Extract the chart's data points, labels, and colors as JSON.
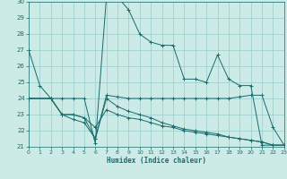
{
  "xlabel": "Humidex (Indice chaleur)",
  "bg_color": "#cceae6",
  "line_color": "#1a6b6b",
  "grid_color": "#99cccc",
  "series": [
    {
      "x": [
        0,
        1,
        2,
        3,
        4,
        5,
        6,
        7,
        8,
        9,
        10,
        11,
        12,
        13,
        14,
        15,
        16,
        17,
        18,
        19,
        20,
        21,
        22,
        23
      ],
      "y": [
        27,
        24.8,
        24,
        24,
        24,
        24,
        21.2,
        30.3,
        30.3,
        29.5,
        28,
        27.5,
        27.3,
        27.3,
        25.2,
        25.2,
        25.0,
        26.7,
        25.2,
        24.8,
        24.8,
        21.1,
        21.1,
        21.1
      ],
      "marker": true
    },
    {
      "x": [
        0,
        2,
        3,
        4,
        5,
        6,
        7,
        8,
        9,
        10,
        11,
        12,
        13,
        14,
        15,
        16,
        17,
        18,
        19,
        20,
        21,
        22,
        23
      ],
      "y": [
        24.0,
        24.0,
        23.0,
        22.7,
        22.5,
        21.5,
        24.2,
        24.1,
        24.0,
        24.0,
        24.0,
        24.0,
        24.0,
        24.0,
        24.0,
        24.0,
        24.0,
        24.0,
        24.1,
        24.2,
        24.2,
        22.2,
        21.1
      ],
      "marker": false
    },
    {
      "x": [
        0,
        2,
        3,
        4,
        5,
        6,
        7,
        8,
        9,
        10,
        11,
        12,
        13,
        14,
        15,
        16,
        17,
        18,
        19,
        20,
        21,
        22,
        23
      ],
      "y": [
        24.0,
        24.0,
        23.0,
        23.0,
        22.8,
        22.2,
        23.3,
        23.0,
        22.8,
        22.7,
        22.5,
        22.3,
        22.2,
        22.0,
        21.9,
        21.8,
        21.7,
        21.6,
        21.5,
        21.4,
        21.3,
        21.1,
        21.1
      ],
      "marker": false
    },
    {
      "x": [
        0,
        2,
        3,
        4,
        5,
        6,
        7,
        8,
        9,
        10,
        11,
        12,
        13,
        14,
        15,
        16,
        17,
        18,
        19,
        20,
        21,
        22,
        23
      ],
      "y": [
        24.0,
        24.0,
        23.0,
        23.0,
        22.8,
        21.5,
        24.0,
        23.5,
        23.2,
        23.0,
        22.8,
        22.5,
        22.3,
        22.1,
        22.0,
        21.9,
        21.8,
        21.6,
        21.5,
        21.4,
        21.3,
        21.1,
        21.1
      ],
      "marker": false
    }
  ],
  "ylim": [
    21,
    30
  ],
  "xlim": [
    0,
    23
  ],
  "yticks": [
    21,
    22,
    23,
    24,
    25,
    26,
    27,
    28,
    29,
    30
  ],
  "xticks": [
    0,
    1,
    2,
    3,
    4,
    5,
    6,
    7,
    8,
    9,
    10,
    11,
    12,
    13,
    14,
    15,
    16,
    17,
    18,
    19,
    20,
    21,
    22,
    23
  ]
}
